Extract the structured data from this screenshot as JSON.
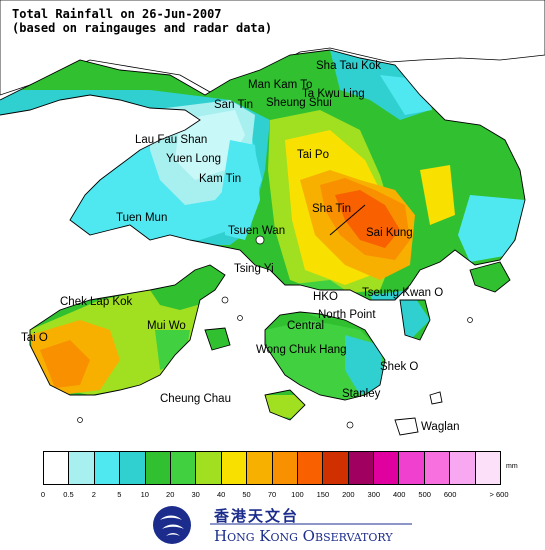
{
  "title": {
    "line1": "Total Rainfall on 26-Jun-2007",
    "line2": "(based on raingauges and radar data)"
  },
  "places": [
    {
      "id": "sha-tau-kok",
      "label": "Sha Tau Kok"
    },
    {
      "id": "man-kam-to",
      "label": "Man Kam To"
    },
    {
      "id": "ta-kwu-ling",
      "label": "Ta Kwu Ling"
    },
    {
      "id": "sheung-shui",
      "label": "Sheung Shui"
    },
    {
      "id": "san-tin",
      "label": "San Tin"
    },
    {
      "id": "lau-fau-shan",
      "label": "Lau Fau Shan"
    },
    {
      "id": "yuen-long",
      "label": "Yuen Long"
    },
    {
      "id": "tai-po",
      "label": "Tai Po"
    },
    {
      "id": "kam-tin",
      "label": "Kam Tin"
    },
    {
      "id": "tuen-mun",
      "label": "Tuen Mun"
    },
    {
      "id": "sha-tin",
      "label": "Sha Tin"
    },
    {
      "id": "tsuen-wan",
      "label": "Tsuen Wan"
    },
    {
      "id": "sai-kung",
      "label": "Sai Kung"
    },
    {
      "id": "tsing-yi",
      "label": "Tsing Yi"
    },
    {
      "id": "chek-lap-kok",
      "label": "Chek Lap Kok"
    },
    {
      "id": "hko",
      "label": "HKO"
    },
    {
      "id": "tseung-kwan-o",
      "label": "Tseung Kwan O"
    },
    {
      "id": "mui-wo",
      "label": "Mui Wo"
    },
    {
      "id": "north-point",
      "label": "North Point"
    },
    {
      "id": "central",
      "label": "Central"
    },
    {
      "id": "tai-o",
      "label": "Tai O"
    },
    {
      "id": "wong-chuk-hang",
      "label": "Wong Chuk Hang"
    },
    {
      "id": "shek-o",
      "label": "Shek O"
    },
    {
      "id": "cheung-chau",
      "label": "Cheung Chau"
    },
    {
      "id": "stanley",
      "label": "Stanley"
    },
    {
      "id": "waglan",
      "label": "Waglan"
    }
  ],
  "legend": {
    "unit": "mm",
    "colors": [
      "#ffffff",
      "#a8f0f0",
      "#50e8f0",
      "#30d0d0",
      "#30c030",
      "#40d040",
      "#a0e020",
      "#f8e000",
      "#f8b000",
      "#f89000",
      "#f86000",
      "#d03000",
      "#a00060",
      "#e000a0",
      "#f040d0",
      "#f870e0",
      "#f8a8f0",
      "#fce0fa"
    ],
    "ticks": [
      "0",
      "0.5",
      "2",
      "5",
      "10",
      "20",
      "30",
      "40",
      "50",
      "70",
      "100",
      "150",
      "200",
      "300",
      "400",
      "500",
      "600",
      "> 600"
    ]
  },
  "logo": {
    "chinese": "香港天文台",
    "english": "Hong Kong Observatory"
  }
}
